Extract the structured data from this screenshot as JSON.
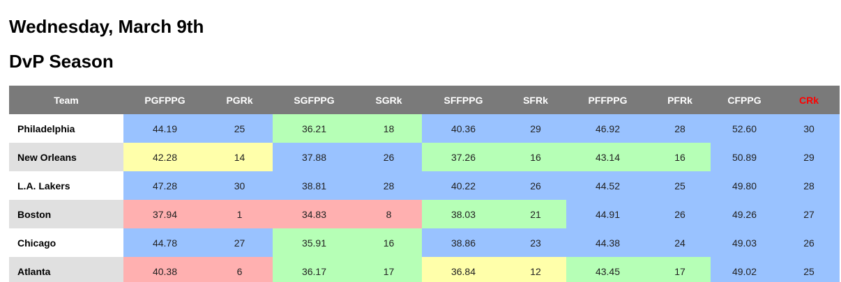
{
  "header": {
    "date": "Wednesday, March 9th",
    "subtitle": "DvP Season"
  },
  "table": {
    "columns": [
      "Team",
      "PGFPPG",
      "PGRk",
      "SGFPPG",
      "SGRk",
      "SFFPPG",
      "SFRk",
      "PFFPPG",
      "PFRk",
      "CFPPG",
      "CRk"
    ],
    "highlighted_column_color": "#ff0000",
    "colors": {
      "blue": "#99c2ff",
      "green": "#b6ffb6",
      "yellow": "#ffffaa",
      "red": "#ffb0b0",
      "header_bg": "#7a7a7a"
    },
    "rows": [
      {
        "team": "Philadelphia",
        "values": [
          "44.19",
          "25",
          "36.21",
          "18",
          "40.36",
          "29",
          "46.92",
          "28",
          "52.60",
          "30"
        ],
        "colors": [
          "blue",
          "green",
          "blue",
          "blue",
          "blue"
        ]
      },
      {
        "team": "New Orleans",
        "values": [
          "42.28",
          "14",
          "37.88",
          "26",
          "37.26",
          "16",
          "43.14",
          "16",
          "50.89",
          "29"
        ],
        "colors": [
          "yellow",
          "blue",
          "green",
          "green",
          "blue"
        ]
      },
      {
        "team": "L.A. Lakers",
        "values": [
          "47.28",
          "30",
          "38.81",
          "28",
          "40.22",
          "26",
          "44.52",
          "25",
          "49.80",
          "28"
        ],
        "colors": [
          "blue",
          "blue",
          "blue",
          "blue",
          "blue"
        ]
      },
      {
        "team": "Boston",
        "values": [
          "37.94",
          "1",
          "34.83",
          "8",
          "38.03",
          "21",
          "44.91",
          "26",
          "49.26",
          "27"
        ],
        "colors": [
          "red",
          "red",
          "green",
          "blue",
          "blue"
        ]
      },
      {
        "team": "Chicago",
        "values": [
          "44.78",
          "27",
          "35.91",
          "16",
          "38.86",
          "23",
          "44.38",
          "24",
          "49.03",
          "26"
        ],
        "colors": [
          "blue",
          "green",
          "blue",
          "blue",
          "blue"
        ]
      },
      {
        "team": "Atlanta",
        "values": [
          "40.38",
          "6",
          "36.17",
          "17",
          "36.84",
          "12",
          "43.45",
          "17",
          "49.02",
          "25"
        ],
        "colors": [
          "red",
          "green",
          "yellow",
          "green",
          "blue"
        ]
      }
    ]
  }
}
